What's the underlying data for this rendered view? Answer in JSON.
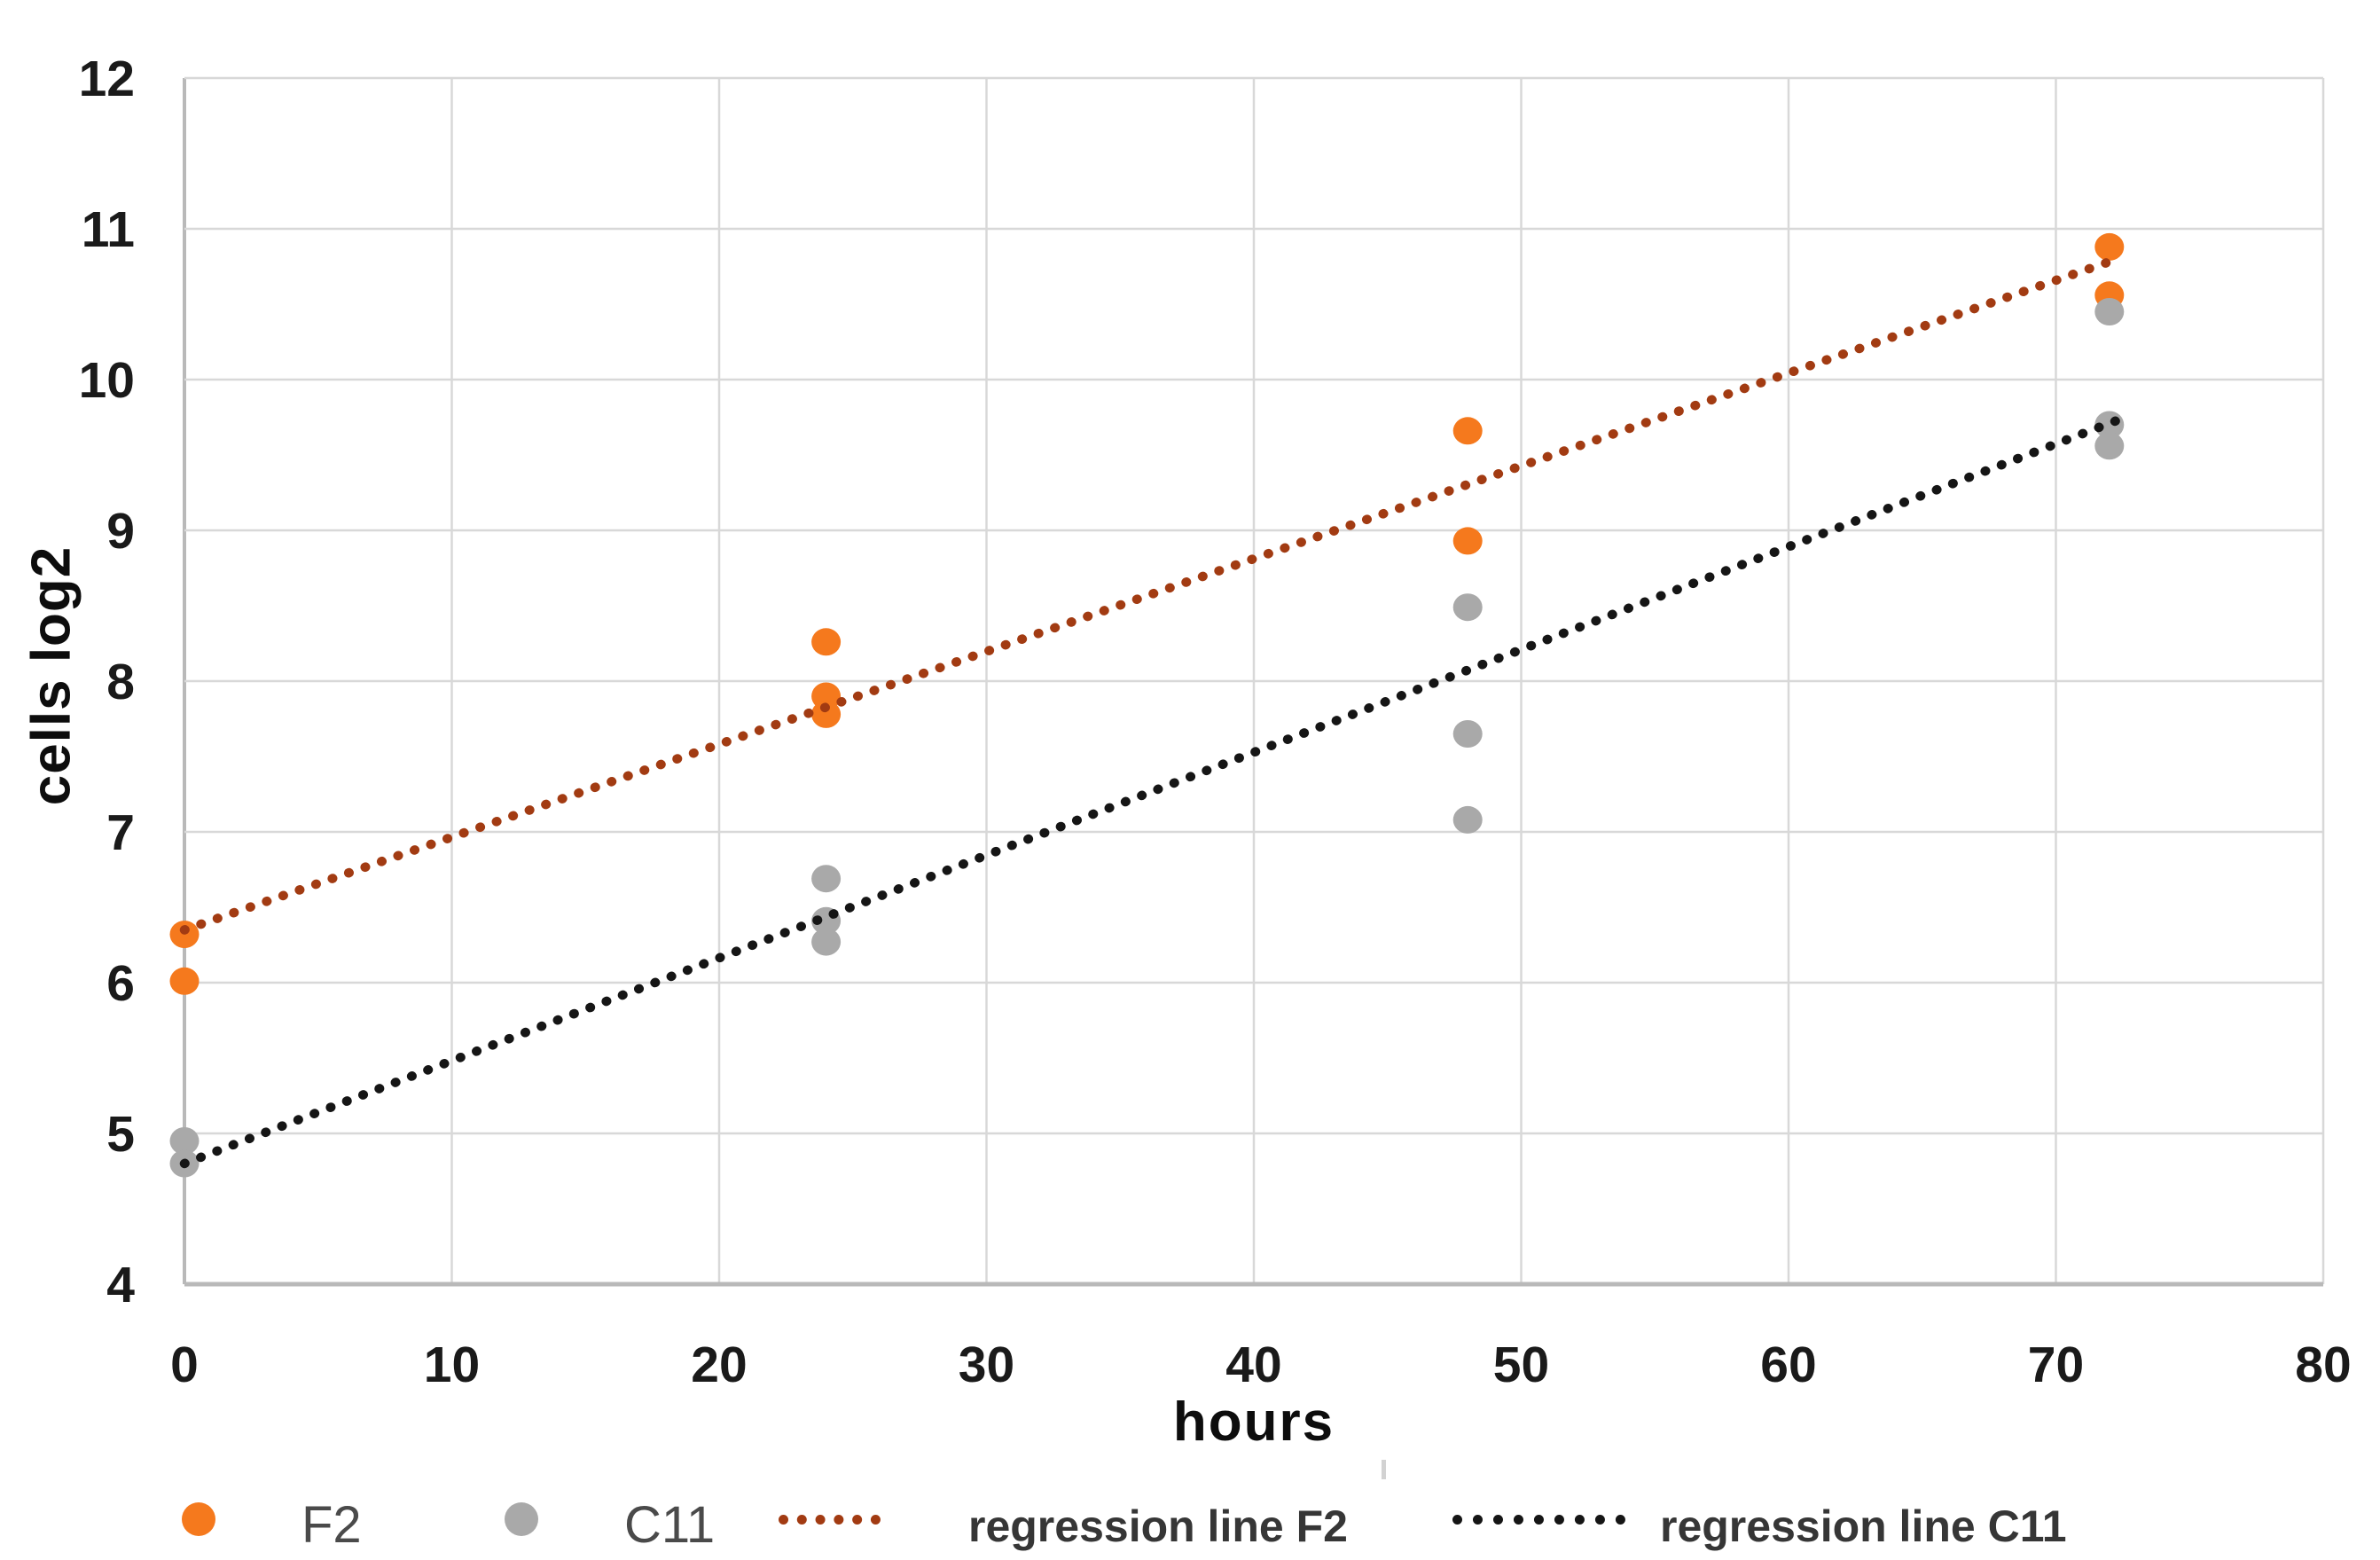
{
  "chart_data": {
    "type": "scatter",
    "title": "",
    "xlabel": "hours",
    "ylabel": "cells log2",
    "xlim": [
      0,
      80
    ],
    "ylim": [
      4,
      12
    ],
    "xticks": [
      0,
      10,
      20,
      30,
      40,
      50,
      60,
      70,
      80
    ],
    "yticks": [
      4,
      5,
      6,
      7,
      8,
      9,
      10,
      11,
      12
    ],
    "grid": true,
    "legend_position": "bottom",
    "colors": {
      "f2_marker": "#f5791d",
      "c11_marker": "#a9a9a9",
      "f2_regression": "#a23b12",
      "c11_regression": "#151515",
      "gridline": "#d8d8d8",
      "axis_line": "#b9b9b9",
      "tick_text": "#1a1a1a"
    },
    "series": [
      {
        "name": "F2",
        "kind": "points",
        "color": "#f5791d",
        "points": [
          [
            0,
            6.32
          ],
          [
            0,
            6.01
          ],
          [
            24,
            8.26
          ],
          [
            24,
            7.9
          ],
          [
            24,
            7.78
          ],
          [
            48,
            9.66
          ],
          [
            48,
            8.93
          ],
          [
            72,
            10.88
          ],
          [
            72,
            10.56
          ]
        ]
      },
      {
        "name": "C11",
        "kind": "points",
        "color": "#a9a9a9",
        "points": [
          [
            0,
            4.95
          ],
          [
            0,
            4.8
          ],
          [
            24,
            6.69
          ],
          [
            24,
            6.41
          ],
          [
            24,
            6.27
          ],
          [
            48,
            8.49
          ],
          [
            48,
            7.65
          ],
          [
            48,
            7.08
          ],
          [
            72,
            10.45
          ],
          [
            72,
            9.7
          ],
          [
            72,
            9.56
          ]
        ]
      },
      {
        "name": "regression line F2",
        "kind": "dotted_line",
        "color": "#a23b12",
        "points": [
          [
            0,
            6.35
          ],
          [
            72.3,
            10.8
          ]
        ]
      },
      {
        "name": "regression line C11",
        "kind": "dotted_line",
        "color": "#151515",
        "points": [
          [
            0,
            4.8
          ],
          [
            72.3,
            9.73
          ]
        ]
      }
    ],
    "legend": {
      "entries": [
        {
          "label": "F2",
          "marker": "dot",
          "color": "#f5791d"
        },
        {
          "label": "C11",
          "marker": "dot",
          "color": "#a9a9a9"
        },
        {
          "label": "regression line F2",
          "marker": "dotted-line",
          "color": "#a23b12"
        },
        {
          "label": "regression line C11",
          "marker": "dotted-line",
          "color": "#151515"
        }
      ]
    }
  }
}
